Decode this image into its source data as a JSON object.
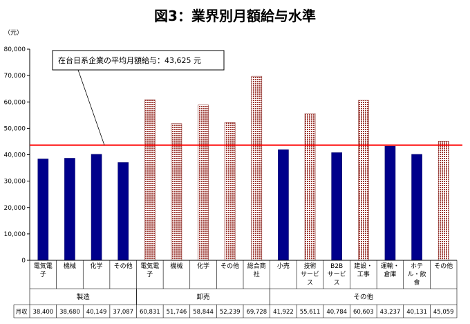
{
  "chart_data": {
    "type": "bar",
    "title": "図3：業界別月額給与水準",
    "yunit": "（元）",
    "ylim": [
      0,
      80000
    ],
    "yticks": [
      "0",
      "10,000",
      "20,000",
      "30,000",
      "40,000",
      "50,000",
      "60,000",
      "70,000",
      "80,000"
    ],
    "categories": [
      {
        "label": [
          "電気電",
          "子"
        ],
        "group": "manufacturing"
      },
      {
        "label": [
          "機械"
        ],
        "group": "manufacturing"
      },
      {
        "label": [
          "化学"
        ],
        "group": "manufacturing"
      },
      {
        "label": [
          "その他"
        ],
        "group": "manufacturing"
      },
      {
        "label": [
          "電気電",
          "子"
        ],
        "group": "wholesale"
      },
      {
        "label": [
          "機械"
        ],
        "group": "wholesale"
      },
      {
        "label": [
          "化学"
        ],
        "group": "wholesale"
      },
      {
        "label": [
          "その他"
        ],
        "group": "wholesale"
      },
      {
        "label": [
          "総合商",
          "社"
        ],
        "group": "wholesale"
      },
      {
        "label": [
          "小売"
        ],
        "group": "other"
      },
      {
        "label": [
          "技術",
          "サービ",
          "ス"
        ],
        "group": "other"
      },
      {
        "label": [
          "B2B",
          "サービ",
          "ス"
        ],
        "group": "other"
      },
      {
        "label": [
          "建設・",
          "工事"
        ],
        "group": "other"
      },
      {
        "label": [
          "運輸・",
          "倉庫"
        ],
        "group": "other"
      },
      {
        "label": [
          "ホテ",
          "ル・飲",
          "食"
        ],
        "group": "other"
      },
      {
        "label": [
          "その他"
        ],
        "group": "other"
      }
    ],
    "values": [
      38400,
      38680,
      40149,
      37087,
      60831,
      51746,
      58844,
      52239,
      69728,
      41922,
      55611,
      40784,
      60603,
      43237,
      40131,
      45059
    ],
    "value_labels": [
      "38,400",
      "38,680",
      "40,149",
      "37,087",
      "60,831",
      "51,746",
      "58,844",
      "52,239",
      "69,728",
      "41,922",
      "55,611",
      "40,784",
      "60,603",
      "43,237",
      "40,131",
      "45,059"
    ],
    "groups": [
      {
        "key": "manufacturing",
        "label": "製造",
        "style": "solid",
        "color": "#00008b"
      },
      {
        "key": "wholesale",
        "label": "卸売",
        "style": "dotted",
        "color": "#c0504d"
      },
      {
        "key": "other",
        "label": "その他",
        "style": "mixed",
        "color": "#00008b"
      }
    ],
    "bar_styles": [
      "solid",
      "solid",
      "solid",
      "solid",
      "dotted",
      "dotted",
      "dotted",
      "dotted",
      "dotted",
      "solid",
      "dotted",
      "solid",
      "dotted",
      "solid",
      "solid",
      "dotted"
    ],
    "row_label": "月収",
    "reference": {
      "value": 43625,
      "label": "在台日系企業の平均月額給与：43,625 元",
      "color": "#ff0000"
    },
    "grid": false,
    "legend": "none"
  }
}
